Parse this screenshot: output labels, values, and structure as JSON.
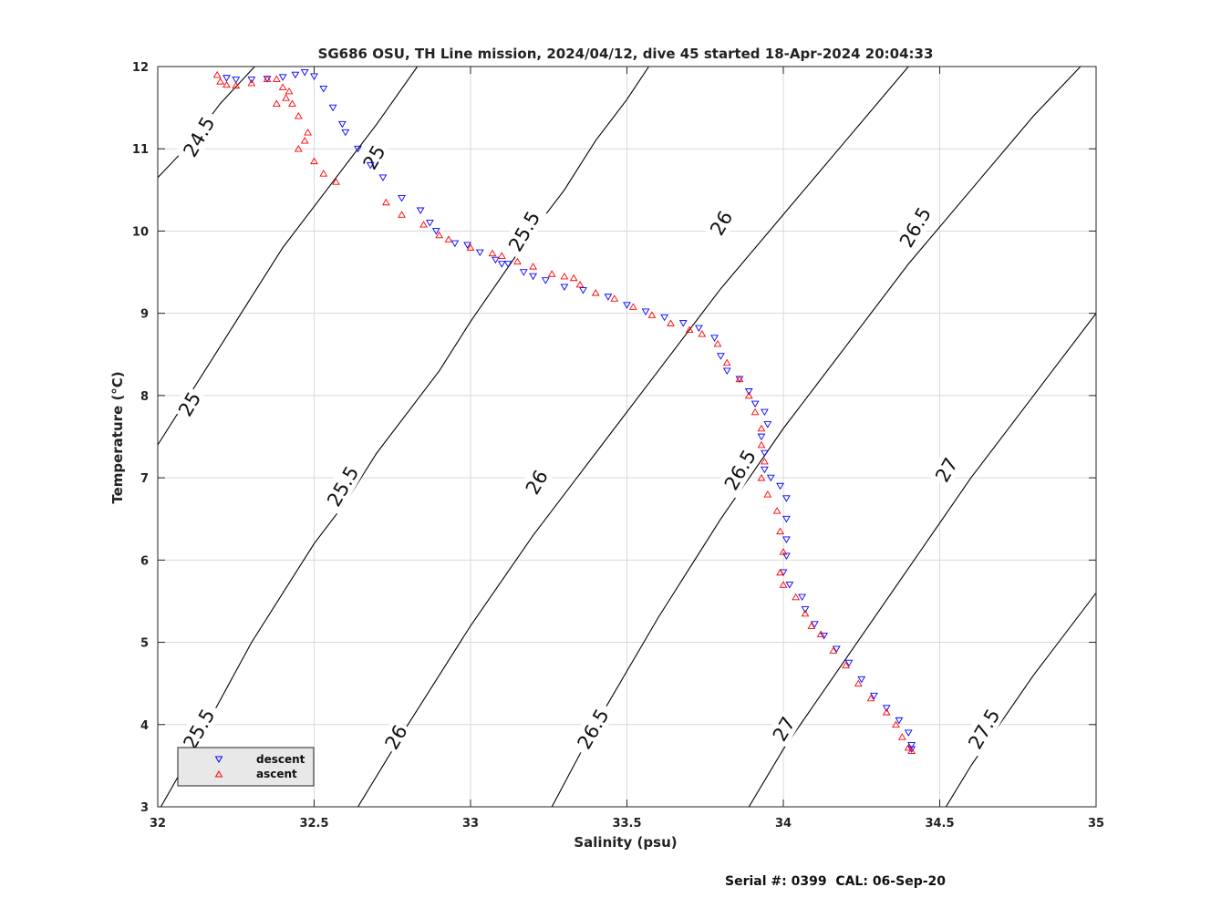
{
  "chart_data": {
    "type": "scatter",
    "title": "SG686 OSU, TH Line mission, 2024/04/12, dive 45 started 18-Apr-2024 20:04:33",
    "xlabel": "Salinity (psu)",
    "ylabel": "Temperature (°C)",
    "xlim": [
      32,
      35
    ],
    "ylim": [
      3,
      12
    ],
    "xticks": [
      "32",
      "32.5",
      "33",
      "33.5",
      "34",
      "34.5",
      "35"
    ],
    "yticks": [
      "3",
      "4",
      "5",
      "6",
      "7",
      "8",
      "9",
      "10",
      "11",
      "12"
    ],
    "grid": true,
    "legend_position": "bottom-left",
    "footer": "Serial #: 0399  CAL: 06-Sep-20",
    "density_contours": [
      {
        "label": "24.5",
        "points": [
          [
            32.0,
            10.65
          ],
          [
            32.1,
            11.05
          ],
          [
            32.2,
            11.55
          ],
          [
            32.31,
            12.0
          ]
        ]
      },
      {
        "label": "25",
        "points": [
          [
            32.0,
            7.4
          ],
          [
            32.1,
            8.0
          ],
          [
            32.2,
            8.6
          ],
          [
            32.3,
            9.2
          ],
          [
            32.4,
            9.8
          ],
          [
            32.5,
            10.3
          ],
          [
            32.6,
            10.8
          ],
          [
            32.7,
            11.3
          ],
          [
            32.83,
            12.0
          ]
        ]
      },
      {
        "label": "25.5",
        "points": [
          [
            32.01,
            3.0
          ],
          [
            32.1,
            3.6
          ],
          [
            32.2,
            4.3
          ],
          [
            32.3,
            5.0
          ],
          [
            32.4,
            5.6
          ],
          [
            32.5,
            6.2
          ],
          [
            32.6,
            6.7
          ],
          [
            32.7,
            7.3
          ],
          [
            32.8,
            7.8
          ],
          [
            32.9,
            8.3
          ],
          [
            33.0,
            8.9
          ],
          [
            33.1,
            9.45
          ],
          [
            33.2,
            10.0
          ],
          [
            33.3,
            10.5
          ],
          [
            33.4,
            11.1
          ],
          [
            33.5,
            11.6
          ],
          [
            33.57,
            12.0
          ]
        ]
      },
      {
        "label": "26",
        "points": [
          [
            32.64,
            3.0
          ],
          [
            32.8,
            4.0
          ],
          [
            33.0,
            5.2
          ],
          [
            33.2,
            6.3
          ],
          [
            33.4,
            7.3
          ],
          [
            33.6,
            8.3
          ],
          [
            33.8,
            9.3
          ],
          [
            34.0,
            10.2
          ],
          [
            34.2,
            11.1
          ],
          [
            34.4,
            12.0
          ]
        ]
      },
      {
        "label": "26.5",
        "points": [
          [
            33.26,
            3.0
          ],
          [
            33.4,
            4.0
          ],
          [
            33.6,
            5.3
          ],
          [
            33.8,
            6.5
          ],
          [
            34.0,
            7.6
          ],
          [
            34.2,
            8.6
          ],
          [
            34.4,
            9.6
          ],
          [
            34.6,
            10.5
          ],
          [
            34.8,
            11.4
          ],
          [
            34.95,
            12.0
          ]
        ]
      },
      {
        "label": "27",
        "points": [
          [
            33.89,
            3.0
          ],
          [
            34.0,
            3.7
          ],
          [
            34.2,
            4.8
          ],
          [
            34.4,
            5.9
          ],
          [
            34.6,
            7.0
          ],
          [
            34.8,
            8.0
          ],
          [
            35.0,
            9.0
          ]
        ]
      },
      {
        "label": "27.5",
        "points": [
          [
            34.52,
            3.0
          ],
          [
            34.6,
            3.5
          ],
          [
            34.8,
            4.6
          ],
          [
            35.0,
            5.6
          ]
        ]
      }
    ],
    "contour_labels": [
      {
        "text": "24.5",
        "x": 32.13,
        "y": 11.15,
        "angle": -60
      },
      {
        "text": "25",
        "x": 32.69,
        "y": 10.9,
        "angle": -60
      },
      {
        "text": "25.5",
        "x": 33.17,
        "y": 10.0,
        "angle": -60
      },
      {
        "text": "26",
        "x": 33.8,
        "y": 10.1,
        "angle": -60
      },
      {
        "text": "26.5",
        "x": 34.42,
        "y": 10.05,
        "angle": -60
      },
      {
        "text": "25",
        "x": 32.1,
        "y": 7.9,
        "angle": -60
      },
      {
        "text": "25.5",
        "x": 32.59,
        "y": 6.9,
        "angle": -60
      },
      {
        "text": "26",
        "x": 33.21,
        "y": 6.95,
        "angle": -60
      },
      {
        "text": "26.5",
        "x": 33.86,
        "y": 7.1,
        "angle": -60
      },
      {
        "text": "27",
        "x": 34.52,
        "y": 7.1,
        "angle": -60
      },
      {
        "text": "25.5",
        "x": 32.13,
        "y": 3.95,
        "angle": -60
      },
      {
        "text": "26",
        "x": 32.76,
        "y": 3.85,
        "angle": -60
      },
      {
        "text": "26.5",
        "x": 33.39,
        "y": 3.95,
        "angle": -60
      },
      {
        "text": "27",
        "x": 34.0,
        "y": 3.95,
        "angle": -60
      },
      {
        "text": "27.5",
        "x": 34.64,
        "y": 3.95,
        "angle": -60
      }
    ],
    "series": [
      {
        "name": "descent",
        "color": "#0000ff",
        "marker": "triangle-down",
        "points": [
          [
            32.47,
            11.93
          ],
          [
            32.44,
            11.9
          ],
          [
            32.4,
            11.87
          ],
          [
            32.35,
            11.85
          ],
          [
            32.3,
            11.84
          ],
          [
            32.25,
            11.84
          ],
          [
            32.22,
            11.86
          ],
          [
            32.5,
            11.88
          ],
          [
            32.53,
            11.73
          ],
          [
            32.56,
            11.5
          ],
          [
            32.59,
            11.3
          ],
          [
            32.6,
            11.2
          ],
          [
            32.64,
            11.0
          ],
          [
            32.68,
            10.8
          ],
          [
            32.72,
            10.65
          ],
          [
            32.78,
            10.4
          ],
          [
            32.84,
            10.25
          ],
          [
            32.87,
            10.1
          ],
          [
            32.89,
            10.0
          ],
          [
            32.95,
            9.85
          ],
          [
            32.99,
            9.83
          ],
          [
            33.03,
            9.74
          ],
          [
            33.08,
            9.65
          ],
          [
            33.1,
            9.6
          ],
          [
            33.12,
            9.6
          ],
          [
            33.17,
            9.5
          ],
          [
            33.2,
            9.45
          ],
          [
            33.24,
            9.4
          ],
          [
            33.3,
            9.32
          ],
          [
            33.36,
            9.28
          ],
          [
            33.44,
            9.2
          ],
          [
            33.5,
            9.1
          ],
          [
            33.56,
            9.02
          ],
          [
            33.62,
            8.95
          ],
          [
            33.68,
            8.88
          ],
          [
            33.73,
            8.82
          ],
          [
            33.78,
            8.7
          ],
          [
            33.8,
            8.48
          ],
          [
            33.82,
            8.3
          ],
          [
            33.86,
            8.2
          ],
          [
            33.89,
            8.05
          ],
          [
            33.91,
            7.9
          ],
          [
            33.94,
            7.8
          ],
          [
            33.95,
            7.65
          ],
          [
            33.93,
            7.5
          ],
          [
            33.94,
            7.3
          ],
          [
            33.94,
            7.1
          ],
          [
            33.96,
            7.0
          ],
          [
            33.99,
            6.9
          ],
          [
            34.01,
            6.75
          ],
          [
            34.01,
            6.5
          ],
          [
            34.01,
            6.25
          ],
          [
            34.01,
            6.05
          ],
          [
            34.0,
            5.85
          ],
          [
            34.02,
            5.7
          ],
          [
            34.06,
            5.55
          ],
          [
            34.07,
            5.4
          ],
          [
            34.1,
            5.22
          ],
          [
            34.13,
            5.08
          ],
          [
            34.17,
            4.92
          ],
          [
            34.21,
            4.75
          ],
          [
            34.25,
            4.55
          ],
          [
            34.29,
            4.35
          ],
          [
            34.33,
            4.2
          ],
          [
            34.37,
            4.05
          ],
          [
            34.4,
            3.9
          ],
          [
            34.41,
            3.75
          ],
          [
            34.41,
            3.7
          ]
        ]
      },
      {
        "name": "ascent",
        "color": "#ff0000",
        "marker": "triangle-up",
        "points": [
          [
            32.19,
            11.9
          ],
          [
            32.2,
            11.82
          ],
          [
            32.22,
            11.78
          ],
          [
            32.25,
            11.77
          ],
          [
            32.3,
            11.8
          ],
          [
            32.35,
            11.85
          ],
          [
            32.38,
            11.85
          ],
          [
            32.4,
            11.75
          ],
          [
            32.42,
            11.7
          ],
          [
            32.41,
            11.62
          ],
          [
            32.38,
            11.55
          ],
          [
            32.43,
            11.55
          ],
          [
            32.45,
            11.4
          ],
          [
            32.48,
            11.2
          ],
          [
            32.47,
            11.1
          ],
          [
            32.45,
            11.0
          ],
          [
            32.5,
            10.85
          ],
          [
            32.53,
            10.7
          ],
          [
            32.57,
            10.6
          ],
          [
            32.73,
            10.35
          ],
          [
            32.78,
            10.2
          ],
          [
            32.85,
            10.08
          ],
          [
            32.9,
            9.95
          ],
          [
            32.93,
            9.9
          ],
          [
            33.0,
            9.8
          ],
          [
            33.07,
            9.73
          ],
          [
            33.1,
            9.7
          ],
          [
            33.15,
            9.63
          ],
          [
            33.2,
            9.57
          ],
          [
            33.26,
            9.48
          ],
          [
            33.3,
            9.45
          ],
          [
            33.33,
            9.43
          ],
          [
            33.35,
            9.35
          ],
          [
            33.4,
            9.25
          ],
          [
            33.46,
            9.18
          ],
          [
            33.52,
            9.08
          ],
          [
            33.58,
            8.98
          ],
          [
            33.64,
            8.88
          ],
          [
            33.7,
            8.8
          ],
          [
            33.74,
            8.75
          ],
          [
            33.79,
            8.63
          ],
          [
            33.82,
            8.4
          ],
          [
            33.86,
            8.2
          ],
          [
            33.89,
            8.0
          ],
          [
            33.91,
            7.8
          ],
          [
            33.93,
            7.6
          ],
          [
            33.93,
            7.4
          ],
          [
            33.94,
            7.2
          ],
          [
            33.93,
            7.0
          ],
          [
            33.95,
            6.8
          ],
          [
            33.98,
            6.6
          ],
          [
            33.99,
            6.35
          ],
          [
            34.0,
            6.1
          ],
          [
            33.99,
            5.85
          ],
          [
            34.0,
            5.7
          ],
          [
            34.04,
            5.55
          ],
          [
            34.07,
            5.35
          ],
          [
            34.09,
            5.2
          ],
          [
            34.12,
            5.1
          ],
          [
            34.16,
            4.9
          ],
          [
            34.2,
            4.72
          ],
          [
            34.24,
            4.5
          ],
          [
            34.28,
            4.32
          ],
          [
            34.33,
            4.15
          ],
          [
            34.36,
            4.0
          ],
          [
            34.38,
            3.85
          ],
          [
            34.4,
            3.72
          ],
          [
            34.41,
            3.68
          ]
        ]
      }
    ]
  }
}
